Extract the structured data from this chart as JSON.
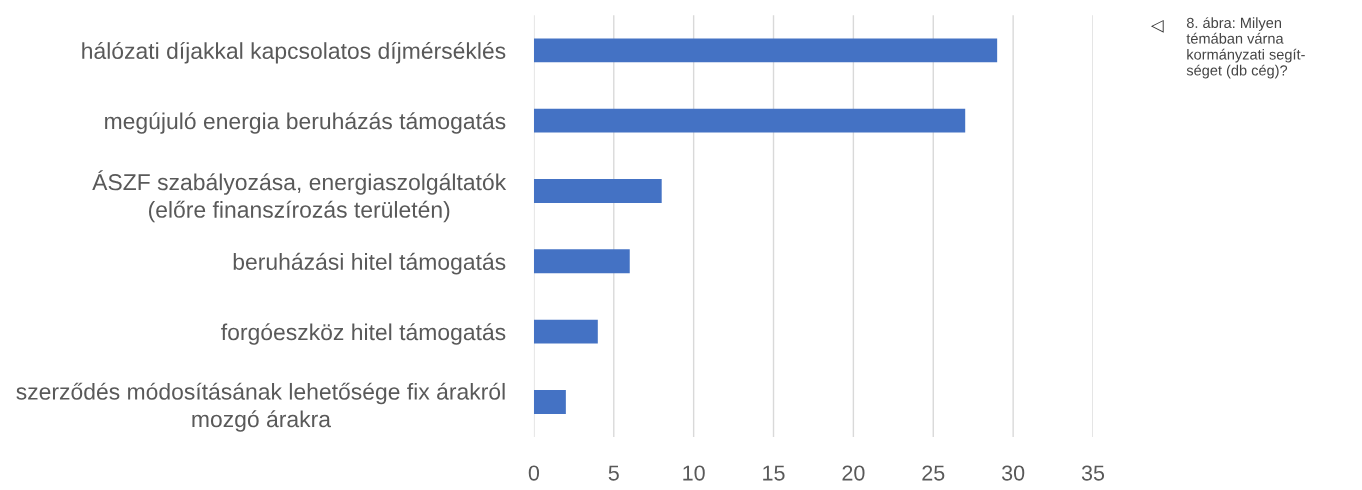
{
  "chart_data": {
    "type": "bar",
    "orientation": "horizontal",
    "categories": [
      "hálózati díjakkal kapcsolatos díjmérséklés",
      "megújuló energia beruházás támogatás",
      "ÁSZF szabályozása, energiaszolgáltatók\n(előre finanszírozás területén)",
      "beruházási hitel támogatás",
      "forgóeszköz hitel támogatás",
      "szerződés módosításának lehetősége fix árakról\nmozgó árakra"
    ],
    "values": [
      29,
      27,
      8,
      6,
      4,
      2
    ],
    "color": "#4472c4",
    "xlim": [
      0,
      35
    ],
    "xticks": [
      0,
      5,
      10,
      15,
      20,
      25,
      30,
      35
    ],
    "grid": "x",
    "annotations": [
      "◁",
      "8. ábra: Milyen\ntémában várna\nkormányzati segít-\nséget (db cég)?"
    ]
  }
}
